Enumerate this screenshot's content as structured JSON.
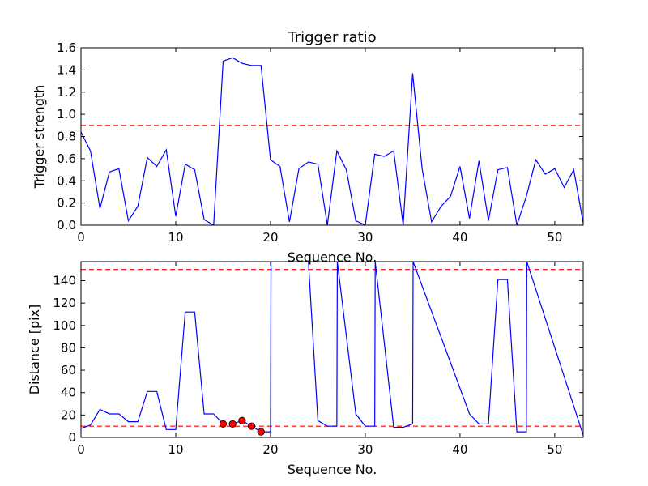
{
  "chart_data": [
    {
      "type": "line",
      "title": "Trigger ratio",
      "xlabel": "Sequence No.",
      "ylabel": "Trigger strength",
      "xlim": [
        0,
        53
      ],
      "ylim": [
        0,
        1.6
      ],
      "xticks": [
        0,
        10,
        20,
        30,
        40,
        50
      ],
      "xtick_labels": [
        "0",
        "10",
        "20",
        "30",
        "40",
        "50"
      ],
      "yticks": [
        0,
        0.2,
        0.4,
        0.6,
        0.8,
        1.0,
        1.2,
        1.4,
        1.6
      ],
      "ytick_labels": [
        "0.0",
        "0.2",
        "0.4",
        "0.6",
        "0.8",
        "1.0",
        "1.2",
        "1.4",
        "1.6"
      ],
      "grid": false,
      "series": [
        {
          "color": "#0000ff",
          "x": [
            0,
            1,
            2,
            3,
            4,
            5,
            6,
            7,
            8,
            9,
            10,
            11,
            12,
            13,
            14,
            15,
            16,
            17,
            18,
            19,
            20,
            21,
            22,
            23,
            24,
            25,
            26,
            27,
            28,
            29,
            30,
            31,
            32,
            33,
            34,
            35,
            36,
            37,
            38,
            39,
            40,
            41,
            42,
            43,
            44,
            45,
            46,
            47,
            48,
            49,
            50,
            51,
            52,
            53
          ],
          "y": [
            0.84,
            0.67,
            0.15,
            0.48,
            0.51,
            0.04,
            0.17,
            0.61,
            0.53,
            0.68,
            0.08,
            0.55,
            0.5,
            0.05,
            0.0,
            1.48,
            1.51,
            1.46,
            1.44,
            1.44,
            0.59,
            0.53,
            0.03,
            0.51,
            0.57,
            0.55,
            0.0,
            0.67,
            0.5,
            0.04,
            0.0,
            0.64,
            0.62,
            0.67,
            0.0,
            1.37,
            0.51,
            0.03,
            0.17,
            0.26,
            0.53,
            0.06,
            0.58,
            0.04,
            0.5,
            0.52,
            0.0,
            0.26,
            0.59,
            0.46,
            0.51,
            0.34,
            0.5,
            0.02
          ]
        }
      ],
      "hlines": [
        {
          "y": 0.9,
          "color": "#ff0000",
          "style": "dashed"
        }
      ]
    },
    {
      "type": "line",
      "title": "",
      "xlabel": "Sequence No.",
      "ylabel": "Distance [pix]",
      "xlim": [
        0,
        53
      ],
      "ylim": [
        0,
        157
      ],
      "xticks": [
        0,
        10,
        20,
        30,
        40,
        50
      ],
      "xtick_labels": [
        "0",
        "10",
        "20",
        "30",
        "40",
        "50"
      ],
      "yticks": [
        0,
        20,
        40,
        60,
        80,
        100,
        120,
        140
      ],
      "ytick_labels": [
        "0",
        "20",
        "40",
        "60",
        "80",
        "100",
        "120",
        "140"
      ],
      "grid": false,
      "series": [
        {
          "color": "#0000ff",
          "x": [
            0,
            1,
            2,
            3,
            4,
            5,
            6,
            7,
            8,
            9,
            10,
            11,
            12,
            13,
            14,
            15,
            16,
            17,
            18,
            19,
            20,
            20.05,
            24,
            25,
            26,
            27,
            27.05,
            29,
            30,
            31,
            31.05,
            33,
            34,
            35,
            35.05,
            41,
            42,
            43,
            44,
            45,
            46,
            47,
            47.05,
            53
          ],
          "y": [
            8,
            11,
            25,
            21,
            21,
            14,
            14,
            41,
            41,
            7,
            7,
            112,
            112,
            21,
            21,
            12,
            12,
            15,
            10,
            5,
            5,
            157,
            157,
            15,
            10,
            10,
            157,
            21,
            10,
            10,
            157,
            9,
            9,
            12,
            157,
            21,
            12,
            12,
            141,
            141,
            5,
            5,
            157,
            2
          ]
        },
        {
          "type": "scatter",
          "color": "#ff0000",
          "x": [
            15,
            16,
            17,
            18,
            19
          ],
          "y": [
            12,
            12,
            15,
            10,
            5
          ]
        }
      ],
      "hlines": [
        {
          "y": 150,
          "color": "#ff0000",
          "style": "dashed"
        },
        {
          "y": 10,
          "color": "#ff0000",
          "style": "dashed"
        }
      ]
    }
  ]
}
